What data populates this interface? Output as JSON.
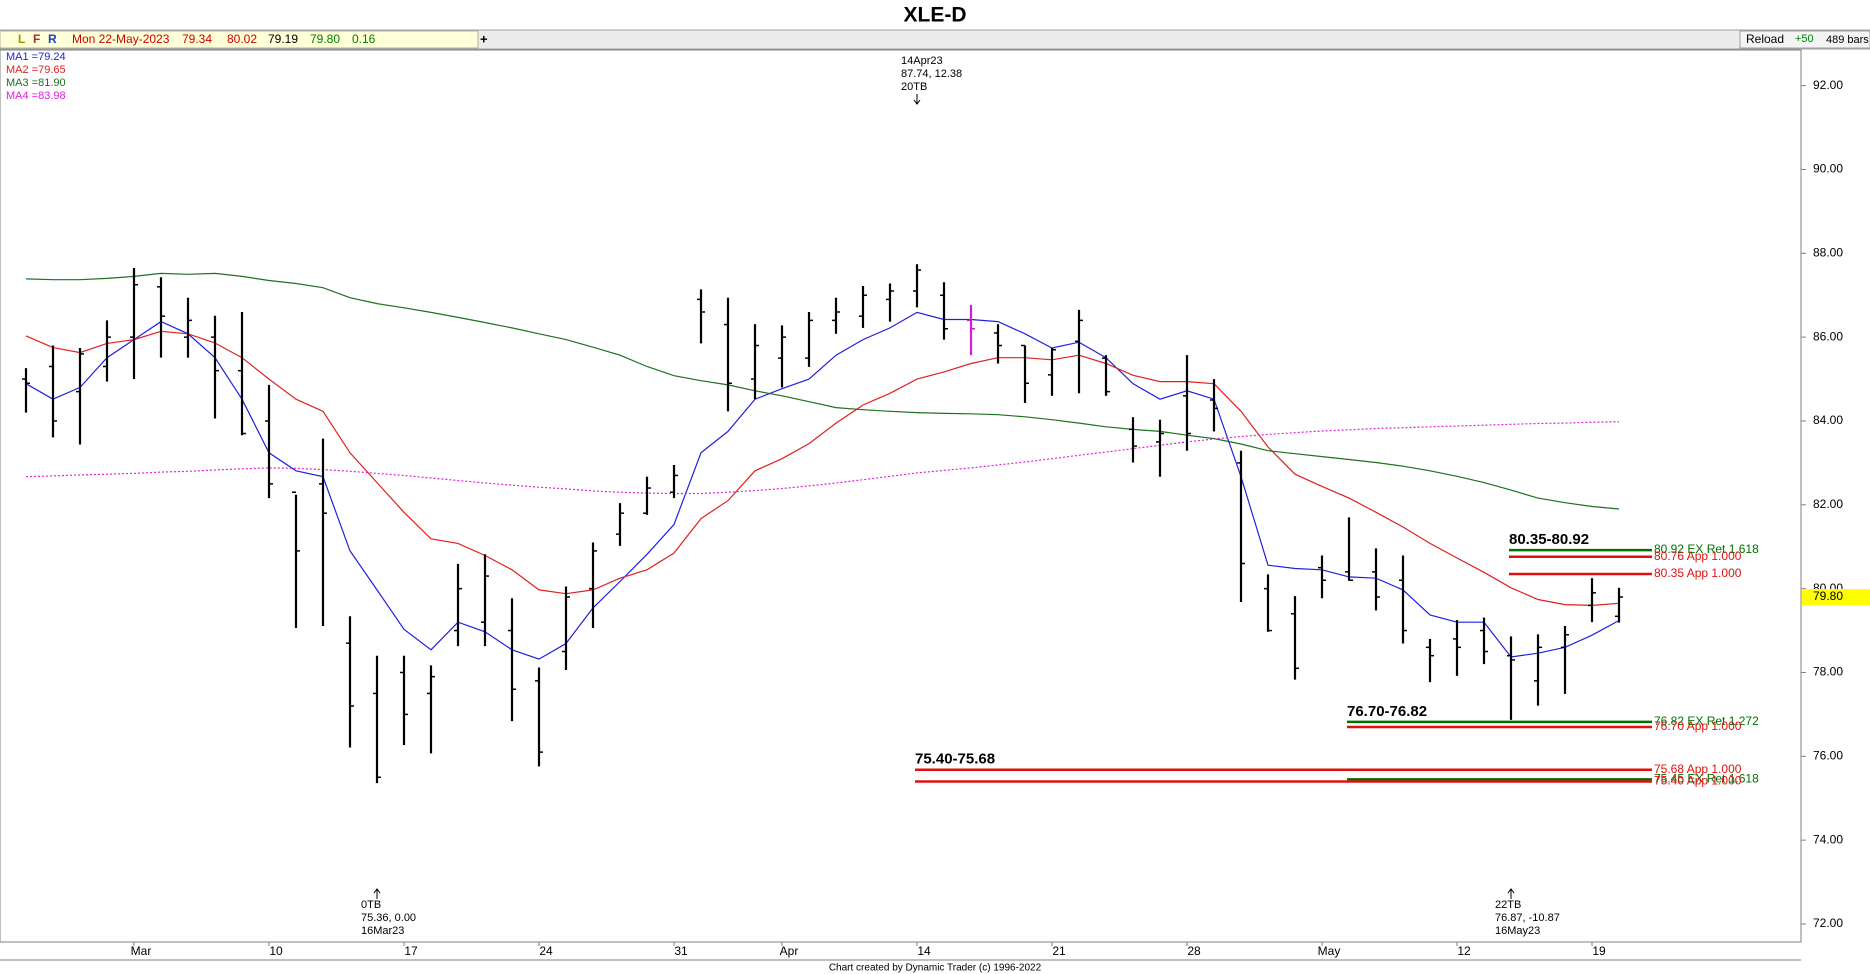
{
  "toolbar": {
    "letters": [
      {
        "text": "L",
        "color": "#9a9a00"
      },
      {
        "text": "F",
        "color": "#a03030"
      },
      {
        "text": "R",
        "color": "#2040c0"
      }
    ],
    "date": "Mon 22-May-2023",
    "values": [
      {
        "text": "79.34",
        "color": "#d00000"
      },
      {
        "text": "80.02",
        "color": "#d00000"
      },
      {
        "text": "79.19",
        "color": "#000000"
      },
      {
        "text": "79.80",
        "color": "#008000"
      },
      {
        "text": "0.16",
        "color": "#008000"
      }
    ],
    "add": "+",
    "reload": "Reload",
    "step": "+50",
    "bars": "489 bars"
  },
  "footer": "Chart created by Dynamic Trader  (c) 1996-2022",
  "chart_data": {
    "type": "ohlc",
    "title": "XLE-D",
    "categories": [
      null,
      null,
      null,
      null,
      "Mar",
      null,
      null,
      null,
      null,
      "10",
      null,
      null,
      null,
      null,
      "17",
      null,
      null,
      null,
      null,
      "24",
      null,
      null,
      null,
      null,
      "31",
      null,
      null,
      null,
      "Apr",
      null,
      null,
      null,
      null,
      "14",
      null,
      null,
      null,
      null,
      "21",
      null,
      null,
      null,
      null,
      "28",
      null,
      null,
      null,
      null,
      "May",
      null,
      null,
      null,
      null,
      "12",
      null,
      null,
      null,
      null,
      "19",
      null
    ],
    "open": [
      85.0,
      85.3,
      84.7,
      85.3,
      86.0,
      87.2,
      86.0,
      86.0,
      85.2,
      84.0,
      82.3,
      82.5,
      78.7,
      77.5,
      78.0,
      77.5,
      79.0,
      79.2,
      79.0,
      77.8,
      78.5,
      80.0,
      81.3,
      81.8,
      82.3,
      86.9,
      86.3,
      85.0,
      85.5,
      85.5,
      86.4,
      86.5,
      86.9,
      87.1,
      87.0,
      86.4,
      86.1,
      85.8,
      85.1,
      85.9,
      85.5,
      83.8,
      83.5,
      84.6,
      84.5,
      83.0,
      80.0,
      79.4,
      80.5,
      80.4,
      80.4,
      80.2,
      78.6,
      78.8,
      79.0,
      78.4,
      77.8,
      78.6,
      79.6,
      79.34
    ],
    "high": [
      85.26,
      85.8,
      85.74,
      86.4,
      87.65,
      87.43,
      86.94,
      86.51,
      86.6,
      84.86,
      82.24,
      83.58,
      79.34,
      78.4,
      78.4,
      78.17,
      80.59,
      80.82,
      79.77,
      78.12,
      80.05,
      81.1,
      82.04,
      82.67,
      82.95,
      87.14,
      86.94,
      86.31,
      86.28,
      86.6,
      86.94,
      87.22,
      87.28,
      87.74,
      87.31,
      86.77,
      86.31,
      85.8,
      85.74,
      86.65,
      85.57,
      84.09,
      84.03,
      85.57,
      85.0,
      83.29,
      80.34,
      79.82,
      80.79,
      81.7,
      80.96,
      80.79,
      78.8,
      79.25,
      79.31,
      78.86,
      78.91,
      79.11,
      80.25,
      80.02
    ],
    "low": [
      84.2,
      83.61,
      83.44,
      84.94,
      85.0,
      85.51,
      85.51,
      84.06,
      83.66,
      82.16,
      79.06,
      79.11,
      76.21,
      75.36,
      76.27,
      76.07,
      78.63,
      78.63,
      76.84,
      75.76,
      78.06,
      79.06,
      81.02,
      81.76,
      82.16,
      85.85,
      84.23,
      84.52,
      84.8,
      85.29,
      86.08,
      86.22,
      86.37,
      86.71,
      85.94,
      85.57,
      85.37,
      84.43,
      84.6,
      84.66,
      84.6,
      83.01,
      82.67,
      83.29,
      83.75,
      79.68,
      78.97,
      77.83,
      79.77,
      80.19,
      79.48,
      78.69,
      77.77,
      77.92,
      78.2,
      76.87,
      77.21,
      77.49,
      79.2,
      79.19
    ],
    "close": [
      84.9,
      84.0,
      85.6,
      86.0,
      87.25,
      86.5,
      86.4,
      85.2,
      83.7,
      82.5,
      80.9,
      81.8,
      77.2,
      75.5,
      77.0,
      77.9,
      80.0,
      80.3,
      77.6,
      76.1,
      79.8,
      80.9,
      81.8,
      82.4,
      82.7,
      86.6,
      84.9,
      85.8,
      86.0,
      86.4,
      86.6,
      87.0,
      87.1,
      87.6,
      86.2,
      86.2,
      85.8,
      84.9,
      85.7,
      86.4,
      84.7,
      83.4,
      83.7,
      83.7,
      84.3,
      80.6,
      79.0,
      78.1,
      80.2,
      80.2,
      79.8,
      79.0,
      78.4,
      78.6,
      78.5,
      78.3,
      78.6,
      78.9,
      79.9,
      79.8
    ],
    "bar_color": "#000000",
    "highlight": {
      "index": 35,
      "color": "#d020d0"
    },
    "series": [
      {
        "name": "MA1 =79.24",
        "color": "#2020e0",
        "dash": false,
        "values": [
          84.89,
          84.52,
          84.8,
          85.51,
          85.94,
          86.37,
          86.08,
          85.51,
          84.52,
          83.24,
          82.81,
          82.67,
          80.9,
          79.97,
          79.03,
          78.54,
          79.2,
          78.97,
          78.54,
          78.32,
          78.69,
          79.54,
          80.17,
          80.82,
          81.53,
          83.24,
          83.75,
          84.52,
          84.77,
          85.0,
          85.57,
          85.94,
          86.22,
          86.59,
          86.42,
          86.42,
          86.37,
          86.08,
          85.74,
          85.88,
          85.51,
          84.89,
          84.52,
          84.72,
          84.52,
          82.67,
          80.56,
          80.48,
          80.45,
          80.28,
          80.25,
          79.97,
          79.37,
          79.2,
          79.2,
          78.37,
          78.46,
          78.6,
          78.89,
          79.24
        ]
      },
      {
        "name": "MA2 =79.65",
        "color": "#e02020",
        "dash": false,
        "values": [
          86.03,
          85.75,
          85.63,
          85.85,
          85.94,
          86.14,
          86.08,
          85.86,
          85.51,
          85.0,
          84.52,
          84.23,
          83.24,
          82.53,
          81.82,
          81.19,
          81.08,
          80.79,
          80.45,
          79.97,
          79.88,
          79.97,
          80.25,
          80.45,
          80.85,
          81.67,
          82.1,
          82.81,
          83.1,
          83.46,
          83.95,
          84.38,
          84.66,
          85.0,
          85.17,
          85.37,
          85.51,
          85.51,
          85.46,
          85.57,
          85.37,
          85.09,
          84.94,
          84.94,
          84.89,
          84.23,
          83.38,
          82.73,
          82.44,
          82.16,
          81.82,
          81.47,
          81.08,
          80.73,
          80.39,
          80.02,
          79.74,
          79.62,
          79.6,
          79.65
        ]
      },
      {
        "name": "MA3 =81.90",
        "color": "#207020",
        "dash": false,
        "values": [
          87.39,
          87.37,
          87.37,
          87.4,
          87.45,
          87.52,
          87.5,
          87.52,
          87.45,
          87.35,
          87.28,
          87.18,
          86.94,
          86.8,
          86.7,
          86.59,
          86.47,
          86.35,
          86.22,
          86.08,
          85.94,
          85.76,
          85.57,
          85.3,
          85.08,
          84.96,
          84.86,
          84.72,
          84.6,
          84.46,
          84.32,
          84.27,
          84.23,
          84.2,
          84.18,
          84.17,
          84.15,
          84.1,
          84.03,
          83.95,
          83.86,
          83.8,
          83.75,
          83.66,
          83.58,
          83.45,
          83.29,
          83.22,
          83.15,
          83.08,
          83.01,
          82.92,
          82.81,
          82.68,
          82.53,
          82.35,
          82.16,
          82.05,
          81.96,
          81.9
        ]
      },
      {
        "name": "MA4 =83.98",
        "color": "#e020e0",
        "dash": true,
        "values": [
          82.67,
          82.69,
          82.71,
          82.73,
          82.75,
          82.78,
          82.8,
          82.83,
          82.86,
          82.88,
          82.87,
          82.84,
          82.8,
          82.75,
          82.7,
          82.64,
          82.58,
          82.52,
          82.47,
          82.42,
          82.38,
          82.33,
          82.3,
          82.28,
          82.27,
          82.27,
          82.3,
          82.34,
          82.39,
          82.45,
          82.52,
          82.6,
          82.68,
          82.76,
          82.82,
          82.88,
          82.95,
          83.02,
          83.1,
          83.18,
          83.26,
          83.34,
          83.42,
          83.5,
          83.57,
          83.63,
          83.68,
          83.72,
          83.76,
          83.79,
          83.82,
          83.84,
          83.86,
          83.88,
          83.9,
          83.92,
          83.94,
          83.95,
          83.97,
          83.98
        ]
      }
    ],
    "ylim": [
      71.57,
      92.85
    ],
    "yticks": [
      {
        "value": 72,
        "label": "72.00"
      },
      {
        "value": 74,
        "label": "74.00"
      },
      {
        "value": 76,
        "label": "76.00"
      },
      {
        "value": 78,
        "label": "78.00"
      },
      {
        "value": 80,
        "label": "80.00"
      },
      {
        "value": 82,
        "label": "82.00"
      },
      {
        "value": 84,
        "label": "84.00"
      },
      {
        "value": 86,
        "label": "86.00"
      },
      {
        "value": 88,
        "label": "88.00"
      },
      {
        "value": 90,
        "label": "90.00"
      },
      {
        "value": 92,
        "label": "92.00"
      }
    ],
    "last_price": {
      "value": 79.8,
      "label": "79.80",
      "color": "#ffff00"
    },
    "levels": [
      {
        "value": 80.92,
        "label": "80.92 EX Ret 1.618",
        "color": "#007000",
        "start": 55
      },
      {
        "value": 80.76,
        "label": "80.76 App 1.000",
        "color": "#e01010",
        "start": 55
      },
      {
        "value": 80.35,
        "label": "80.35 App 1.000",
        "color": "#e01010",
        "start": 55
      },
      {
        "value": 76.82,
        "label": "76.82 EX Ret 1.272",
        "color": "#007000",
        "start": 49
      },
      {
        "value": 76.7,
        "label": "76.70 App 1.000",
        "color": "#e01010",
        "start": 49
      },
      {
        "value": 75.68,
        "label": "75.68 App 1.000",
        "color": "#e01010",
        "start": 33
      },
      {
        "value": 75.45,
        "label": "75.45 EX Ret 1.618",
        "color": "#007000",
        "start": 49
      },
      {
        "value": 75.4,
        "label": "75.40 App 1.000",
        "color": "#e01010",
        "start": 33
      }
    ],
    "zones": [
      {
        "label": "80.35-80.92",
        "start": 55,
        "top": 80.92
      },
      {
        "label": "76.70-76.82",
        "start": 49,
        "top": 76.82
      },
      {
        "label": "75.40-75.68",
        "start": 33,
        "top": 75.68
      }
    ],
    "annotations": [
      {
        "index": 33,
        "position": "top",
        "lines": [
          "14Apr23",
          "87.74, 12.38",
          "20TB"
        ]
      },
      {
        "index": 13,
        "position": "bottom",
        "lines": [
          "0TB",
          "75.36, 0.00",
          "16Mar23"
        ]
      },
      {
        "index": 55,
        "position": "bottom",
        "lines": [
          "22TB",
          "76.87, -10.87",
          "16May23"
        ]
      }
    ]
  }
}
